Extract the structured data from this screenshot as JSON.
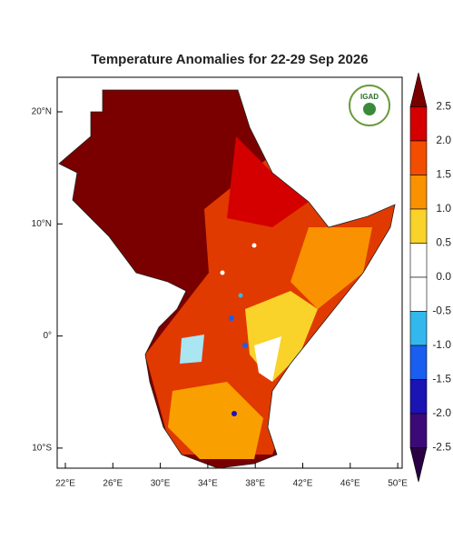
{
  "header": {
    "title": "Temperature Anomalies for 22-29 Sep 2026"
  },
  "map": {
    "lon_labels": [
      "22°E",
      "26°E",
      "30°E",
      "34°E",
      "38°E",
      "42°E",
      "46°E",
      "50°E"
    ],
    "lat_labels": [
      "20°N",
      "10°N",
      "0°",
      "10°S"
    ],
    "logo": "IGAD"
  },
  "colorbar": {
    "labels": [
      "2.5",
      "2.0",
      "1.5",
      "1.0",
      "0.5",
      "0.0",
      "-0.5",
      "-1.0",
      "-1.5",
      "-2.0",
      "-2.5"
    ],
    "colors": [
      "#7a0000",
      "#d40000",
      "#f24d00",
      "#f99100",
      "#f9d22a",
      "#ffffff",
      "#ffffff",
      "#33b8ee",
      "#1a5ef0",
      "#1a14b4",
      "#3c0a78",
      "#2a0045"
    ]
  }
}
